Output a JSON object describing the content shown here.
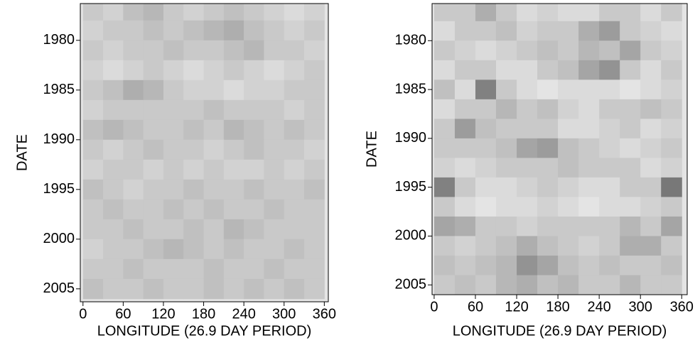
{
  "chart_data": [
    {
      "type": "heatmap",
      "xlabel": "LONGITUDE (26.9 DAY PERIOD)",
      "ylabel": "DATE",
      "xlim": [
        -4,
        366
      ],
      "ylim": [
        1976.3,
        2006.3
      ],
      "y_inverted": true,
      "xticks": [
        0,
        60,
        120,
        180,
        240,
        300,
        360
      ],
      "yticks": [
        1980,
        1985,
        1990,
        1995,
        2000,
        2005
      ],
      "x": [
        15,
        45,
        75,
        105,
        135,
        165,
        195,
        225,
        255,
        285,
        315,
        345
      ],
      "y": [
        1977,
        1979,
        1981,
        1983,
        1985,
        1987,
        1989,
        1991,
        1993,
        1995,
        1997,
        1999,
        2001,
        2003,
        2005
      ],
      "z": [
        [
          0.3,
          0.25,
          0.35,
          0.4,
          0.3,
          0.25,
          0.3,
          0.35,
          0.3,
          0.25,
          0.2,
          0.25
        ],
        [
          0.25,
          0.3,
          0.3,
          0.35,
          0.3,
          0.35,
          0.4,
          0.45,
          0.35,
          0.3,
          0.25,
          0.3
        ],
        [
          0.3,
          0.25,
          0.3,
          0.3,
          0.35,
          0.3,
          0.3,
          0.35,
          0.4,
          0.3,
          0.3,
          0.25
        ],
        [
          0.25,
          0.2,
          0.25,
          0.3,
          0.25,
          0.2,
          0.25,
          0.3,
          0.25,
          0.2,
          0.25,
          0.3
        ],
        [
          0.3,
          0.35,
          0.45,
          0.4,
          0.3,
          0.25,
          0.25,
          0.2,
          0.25,
          0.25,
          0.3,
          0.3
        ],
        [
          0.25,
          0.3,
          0.3,
          0.3,
          0.3,
          0.3,
          0.35,
          0.3,
          0.3,
          0.3,
          0.25,
          0.3
        ],
        [
          0.35,
          0.4,
          0.35,
          0.3,
          0.3,
          0.35,
          0.3,
          0.4,
          0.35,
          0.3,
          0.35,
          0.3
        ],
        [
          0.3,
          0.25,
          0.3,
          0.35,
          0.3,
          0.3,
          0.25,
          0.3,
          0.35,
          0.3,
          0.3,
          0.25
        ],
        [
          0.25,
          0.3,
          0.3,
          0.25,
          0.3,
          0.25,
          0.3,
          0.25,
          0.25,
          0.3,
          0.25,
          0.3
        ],
        [
          0.35,
          0.3,
          0.25,
          0.3,
          0.3,
          0.35,
          0.3,
          0.3,
          0.35,
          0.3,
          0.3,
          0.35
        ],
        [
          0.3,
          0.35,
          0.3,
          0.3,
          0.35,
          0.3,
          0.35,
          0.3,
          0.3,
          0.35,
          0.3,
          0.3
        ],
        [
          0.3,
          0.3,
          0.35,
          0.3,
          0.3,
          0.35,
          0.3,
          0.4,
          0.35,
          0.3,
          0.3,
          0.3
        ],
        [
          0.25,
          0.3,
          0.3,
          0.35,
          0.4,
          0.35,
          0.3,
          0.35,
          0.3,
          0.3,
          0.35,
          0.3
        ],
        [
          0.3,
          0.3,
          0.35,
          0.3,
          0.3,
          0.3,
          0.35,
          0.3,
          0.3,
          0.35,
          0.3,
          0.3
        ],
        [
          0.35,
          0.3,
          0.3,
          0.35,
          0.3,
          0.3,
          0.35,
          0.3,
          0.35,
          0.3,
          0.35,
          0.3
        ]
      ]
    },
    {
      "type": "heatmap",
      "xlabel": "LONGITUDE (26.9 DAY PERIOD)",
      "ylabel": "DATE",
      "xlim": [
        -3,
        368
      ],
      "ylim": [
        1976.2,
        2006.0
      ],
      "y_inverted": true,
      "xticks": [
        0,
        60,
        120,
        180,
        240,
        300,
        360
      ],
      "yticks": [
        1980,
        1985,
        1990,
        1995,
        2000,
        2005
      ],
      "x": [
        15,
        45,
        75,
        105,
        135,
        165,
        195,
        225,
        255,
        285,
        315,
        345
      ],
      "y": [
        1977,
        1979,
        1981,
        1983,
        1985,
        1987,
        1989,
        1991,
        1993,
        1995,
        1997,
        1999,
        2001,
        2003,
        2005
      ],
      "z": [
        [
          0.3,
          0.3,
          0.45,
          0.3,
          0.2,
          0.25,
          0.2,
          0.2,
          0.3,
          0.3,
          0.2,
          0.3
        ],
        [
          0.2,
          0.3,
          0.3,
          0.35,
          0.25,
          0.3,
          0.3,
          0.45,
          0.55,
          0.3,
          0.25,
          0.2
        ],
        [
          0.3,
          0.25,
          0.2,
          0.25,
          0.3,
          0.35,
          0.3,
          0.4,
          0.35,
          0.5,
          0.3,
          0.25
        ],
        [
          0.2,
          0.3,
          0.3,
          0.2,
          0.2,
          0.3,
          0.35,
          0.5,
          0.6,
          0.3,
          0.2,
          0.3
        ],
        [
          0.35,
          0.2,
          0.7,
          0.3,
          0.2,
          0.15,
          0.2,
          0.2,
          0.2,
          0.15,
          0.2,
          0.25
        ],
        [
          0.2,
          0.3,
          0.3,
          0.4,
          0.3,
          0.35,
          0.25,
          0.2,
          0.3,
          0.3,
          0.35,
          0.3
        ],
        [
          0.3,
          0.55,
          0.35,
          0.3,
          0.3,
          0.3,
          0.2,
          0.2,
          0.25,
          0.3,
          0.2,
          0.25
        ],
        [
          0.3,
          0.3,
          0.3,
          0.35,
          0.5,
          0.55,
          0.35,
          0.3,
          0.25,
          0.2,
          0.25,
          0.3
        ],
        [
          0.25,
          0.2,
          0.25,
          0.3,
          0.3,
          0.3,
          0.35,
          0.3,
          0.3,
          0.3,
          0.2,
          0.25
        ],
        [
          0.7,
          0.3,
          0.2,
          0.2,
          0.25,
          0.3,
          0.25,
          0.2,
          0.2,
          0.3,
          0.3,
          0.75
        ],
        [
          0.3,
          0.2,
          0.15,
          0.2,
          0.2,
          0.25,
          0.2,
          0.15,
          0.2,
          0.2,
          0.25,
          0.3
        ],
        [
          0.5,
          0.45,
          0.3,
          0.3,
          0.25,
          0.3,
          0.3,
          0.3,
          0.3,
          0.4,
          0.3,
          0.5
        ],
        [
          0.3,
          0.25,
          0.3,
          0.35,
          0.45,
          0.35,
          0.3,
          0.25,
          0.3,
          0.45,
          0.45,
          0.3
        ],
        [
          0.35,
          0.3,
          0.35,
          0.4,
          0.6,
          0.5,
          0.35,
          0.3,
          0.35,
          0.3,
          0.3,
          0.35
        ],
        [
          0.3,
          0.35,
          0.3,
          0.4,
          0.45,
          0.35,
          0.4,
          0.3,
          0.3,
          0.4,
          0.3,
          0.3
        ]
      ]
    }
  ]
}
